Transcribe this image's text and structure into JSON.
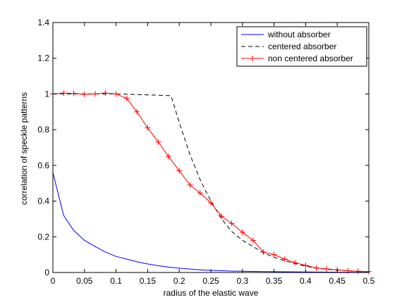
{
  "chart_data": {
    "type": "line",
    "xlabel": "radius of the elastic wave",
    "ylabel": "correlation of speckle patterns",
    "xlim": [
      0,
      0.5
    ],
    "ylim": [
      0,
      1.4
    ],
    "x_ticks": [
      "0",
      "0.05",
      "0.1",
      "0.15",
      "0.2",
      "0.25",
      "0.3",
      "0.35",
      "0.4",
      "0.45",
      "0.5"
    ],
    "y_ticks": [
      "0",
      "0.2",
      "0.4",
      "0.6",
      "0.8",
      "1",
      "1.2",
      "1.4"
    ],
    "grid": false,
    "legend_position": "top-right",
    "series": [
      {
        "name": "without absorber",
        "color": "#0000ff",
        "style": "solid",
        "marker": "none",
        "points": [
          [
            0,
            0.56
          ],
          [
            0.017,
            0.32
          ],
          [
            0.033,
            0.235
          ],
          [
            0.05,
            0.18
          ],
          [
            0.067,
            0.145
          ],
          [
            0.083,
            0.115
          ],
          [
            0.1,
            0.09
          ],
          [
            0.117,
            0.075
          ],
          [
            0.133,
            0.06
          ],
          [
            0.15,
            0.048
          ],
          [
            0.167,
            0.038
          ],
          [
            0.183,
            0.03
          ],
          [
            0.2,
            0.024
          ],
          [
            0.217,
            0.019
          ],
          [
            0.233,
            0.015
          ],
          [
            0.25,
            0.012
          ],
          [
            0.267,
            0.01
          ],
          [
            0.283,
            0.008
          ],
          [
            0.3,
            0.007
          ],
          [
            0.333,
            0.005
          ],
          [
            0.367,
            0.004
          ],
          [
            0.4,
            0.003
          ],
          [
            0.433,
            0.002
          ],
          [
            0.467,
            0.0015
          ],
          [
            0.5,
            0.001
          ]
        ]
      },
      {
        "name": "centered absorber",
        "color": "#000000",
        "style": "dashed",
        "marker": "none",
        "points": [
          [
            0,
            1.0
          ],
          [
            0.05,
            1.0
          ],
          [
            0.1,
            1.0
          ],
          [
            0.15,
            0.995
          ],
          [
            0.187,
            0.99
          ],
          [
            0.2,
            0.84
          ],
          [
            0.217,
            0.66
          ],
          [
            0.233,
            0.52
          ],
          [
            0.25,
            0.4
          ],
          [
            0.267,
            0.3
          ],
          [
            0.283,
            0.23
          ],
          [
            0.3,
            0.18
          ],
          [
            0.317,
            0.145
          ],
          [
            0.333,
            0.11
          ],
          [
            0.35,
            0.085
          ],
          [
            0.367,
            0.065
          ],
          [
            0.383,
            0.05
          ],
          [
            0.4,
            0.035
          ],
          [
            0.417,
            0.025
          ],
          [
            0.433,
            0.018
          ],
          [
            0.45,
            0.013
          ],
          [
            0.467,
            0.009
          ],
          [
            0.483,
            0.006
          ],
          [
            0.5,
            0.004
          ]
        ]
      },
      {
        "name": "non centered absorber",
        "color": "#ff0000",
        "style": "solid",
        "marker": "+",
        "points": [
          [
            0,
            1.0
          ],
          [
            0.017,
            1.005
          ],
          [
            0.033,
            1.003
          ],
          [
            0.05,
            0.998
          ],
          [
            0.067,
            1.0
          ],
          [
            0.083,
            1.005
          ],
          [
            0.1,
            1.0
          ],
          [
            0.117,
            0.975
          ],
          [
            0.133,
            0.9
          ],
          [
            0.15,
            0.81
          ],
          [
            0.167,
            0.73
          ],
          [
            0.183,
            0.65
          ],
          [
            0.2,
            0.57
          ],
          [
            0.217,
            0.49
          ],
          [
            0.233,
            0.445
          ],
          [
            0.25,
            0.39
          ],
          [
            0.267,
            0.315
          ],
          [
            0.283,
            0.275
          ],
          [
            0.3,
            0.225
          ],
          [
            0.317,
            0.18
          ],
          [
            0.333,
            0.115
          ],
          [
            0.35,
            0.1
          ],
          [
            0.367,
            0.075
          ],
          [
            0.383,
            0.055
          ],
          [
            0.4,
            0.04
          ],
          [
            0.417,
            0.025
          ],
          [
            0.433,
            0.02
          ],
          [
            0.45,
            0.015
          ],
          [
            0.467,
            0.01
          ],
          [
            0.483,
            0.007
          ],
          [
            0.5,
            0.005
          ]
        ]
      }
    ]
  }
}
